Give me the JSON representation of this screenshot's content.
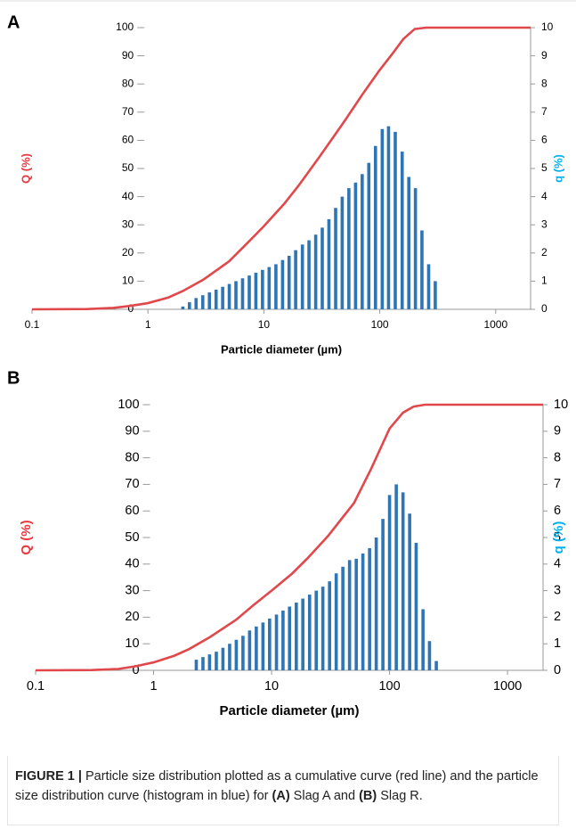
{
  "chart_data": [
    {
      "type": "combo",
      "panel_label": "A",
      "x_label": "Particle diameter (µm)",
      "y_label": "Q (%)",
      "y2_label": "q (%)",
      "log_x": true,
      "y_cross": 1,
      "xlim": [
        0.1,
        2000
      ],
      "xticks": [
        0.1,
        1,
        10,
        100,
        1000
      ],
      "ylim": [
        0,
        100
      ],
      "yticks": [
        0,
        10,
        20,
        30,
        40,
        50,
        60,
        70,
        80,
        90,
        100
      ],
      "y2lim": [
        0,
        10
      ],
      "y2ticks": [
        0,
        1,
        2,
        3,
        4,
        5,
        6,
        7,
        8,
        9,
        10
      ],
      "y_label_color": "#e8383d",
      "y2_label_color": "#00b0f0",
      "series": [
        {
          "type": "line",
          "color": "#e0484c",
          "x": [
            0.1,
            0.3,
            0.5,
            0.7,
            1,
            1.5,
            2,
            3,
            5,
            7,
            10,
            15,
            20,
            30,
            50,
            70,
            100,
            130,
            160,
            200,
            250,
            300,
            2000
          ],
          "values": [
            0,
            0.1,
            0.5,
            1.2,
            2.2,
            4.2,
            6.5,
            10.5,
            17,
            23,
            29.5,
            37.5,
            44,
            54,
            67,
            76,
            85,
            91,
            96,
            99.5,
            100,
            100,
            100
          ]
        },
        {
          "type": "bar",
          "axis": "y2",
          "color": "#2e75b6",
          "x": [
            2.0,
            2.28,
            2.6,
            2.97,
            3.39,
            3.87,
            4.41,
            5.03,
            5.74,
            6.55,
            7.48,
            8.53,
            9.73,
            11.1,
            12.7,
            14.5,
            16.5,
            18.8,
            21.5,
            24.5,
            28.0,
            31.9,
            36.4,
            41.6,
            47.4,
            54.1,
            61.8,
            70.5,
            80.4,
            91.8,
            105,
            119,
            136,
            156,
            178,
            203,
            231,
            264,
            301
          ],
          "values": [
            0.1,
            0.25,
            0.4,
            0.5,
            0.6,
            0.7,
            0.8,
            0.9,
            1.0,
            1.1,
            1.2,
            1.3,
            1.4,
            1.5,
            1.6,
            1.75,
            1.9,
            2.1,
            2.3,
            2.45,
            2.65,
            2.9,
            3.2,
            3.6,
            4.0,
            4.3,
            4.5,
            4.8,
            5.2,
            5.8,
            6.4,
            6.5,
            6.3,
            5.6,
            4.7,
            4.3,
            2.8,
            1.6,
            1.0
          ]
        }
      ]
    },
    {
      "type": "combo",
      "panel_label": "B",
      "x_label": "Particle diameter (µm)",
      "y_label": "Q (%)",
      "y2_label": "q (%)",
      "log_x": true,
      "y_cross": 1,
      "xlim": [
        0.1,
        2000
      ],
      "xticks": [
        0.1,
        1,
        10,
        100,
        1000
      ],
      "ylim": [
        0,
        100
      ],
      "yticks": [
        0,
        10,
        20,
        30,
        40,
        50,
        60,
        70,
        80,
        90,
        100
      ],
      "y2lim": [
        0,
        10
      ],
      "y2ticks": [
        0,
        1,
        2,
        3,
        4,
        5,
        6,
        7,
        8,
        9,
        10
      ],
      "y_label_color": "#e8383d",
      "y2_label_color": "#00b0f0",
      "series": [
        {
          "type": "line",
          "color": "#e0484c",
          "x": [
            0.1,
            0.3,
            0.5,
            0.7,
            1,
            1.5,
            2,
            3,
            5,
            7,
            10,
            15,
            20,
            30,
            50,
            70,
            100,
            130,
            160,
            200,
            250,
            300,
            2000
          ],
          "values": [
            0,
            0.1,
            0.5,
            1.5,
            3,
            5.5,
            8,
            12.5,
            19,
            24.5,
            30,
            36.5,
            42,
            50.5,
            63,
            76,
            91,
            97,
            99.3,
            100,
            100,
            100,
            100
          ]
        },
        {
          "type": "bar",
          "axis": "y2",
          "color": "#2e75b6",
          "x": [
            2.3,
            2.62,
            2.98,
            3.4,
            3.87,
            4.41,
            5.02,
            5.72,
            6.51,
            7.42,
            8.45,
            9.62,
            11.0,
            12.5,
            14.2,
            16.2,
            18.4,
            21.0,
            23.9,
            27.2,
            31.0,
            35.3,
            40.2,
            45.8,
            52.2,
            59.4,
            67.7,
            77.1,
            87.8,
            100,
            114,
            130,
            148,
            168,
            192,
            218,
            249
          ],
          "values": [
            0.4,
            0.5,
            0.6,
            0.7,
            0.85,
            1.0,
            1.15,
            1.3,
            1.5,
            1.65,
            1.8,
            1.95,
            2.1,
            2.25,
            2.4,
            2.55,
            2.7,
            2.85,
            3.0,
            3.15,
            3.35,
            3.65,
            3.9,
            4.15,
            4.2,
            4.4,
            4.6,
            5.0,
            5.7,
            6.6,
            7.0,
            6.7,
            5.9,
            4.8,
            2.3,
            1.1,
            0.35
          ]
        }
      ]
    }
  ],
  "caption": [
    "FIGURE 1 |",
    " Particle size distribution plotted as a cumulative curve (red line) and the particle size distribution curve (histogram in blue) for ",
    "(A)",
    " Slag A and ",
    "(B)",
    " Slag R."
  ]
}
